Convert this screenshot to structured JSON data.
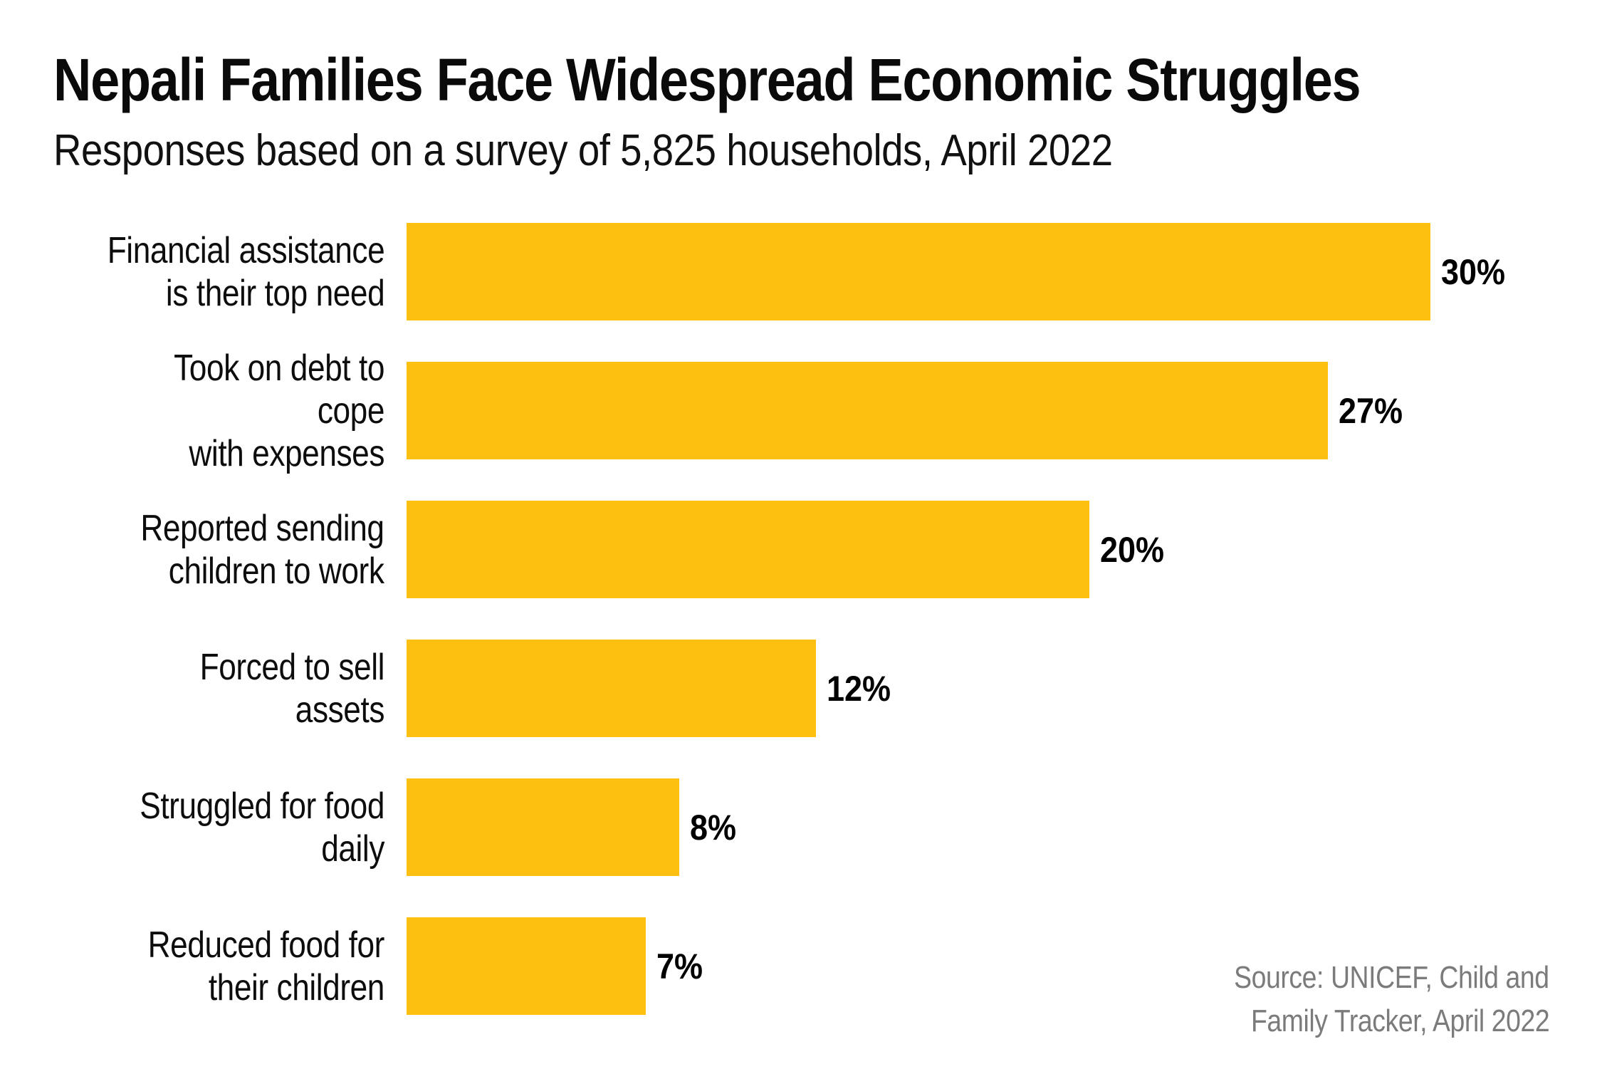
{
  "header": {
    "title": "Nepali Families Face Widespread Economic Struggles",
    "subtitle": "Responses based on a survey of 5,825 households, April 2022"
  },
  "chart_data": {
    "type": "bar",
    "orientation": "horizontal",
    "title": "Nepali Families Face Widespread Economic Struggles",
    "subtitle": "Responses based on a survey of 5,825 households, April 2022",
    "categories": [
      "Financial assistance is their top need",
      "Took on debt to cope with expenses",
      "Reported sending children to work",
      "Forced to sell assets",
      "Struggled for food daily",
      "Reduced food for their children"
    ],
    "category_lines": [
      [
        "Financial assistance",
        "is their top need"
      ],
      [
        "Took on debt to cope",
        "with expenses"
      ],
      [
        "Reported sending",
        "children to work"
      ],
      [
        "Forced to sell assets"
      ],
      [
        "Struggled for food daily"
      ],
      [
        "Reduced food for",
        "their children"
      ]
    ],
    "values": [
      30,
      27,
      20,
      12,
      8,
      7
    ],
    "value_labels": [
      "30%",
      "27%",
      "20%",
      "12%",
      "8%",
      "7%"
    ],
    "unit": "%",
    "xlim": [
      0,
      30
    ],
    "grid": false,
    "axis_lines": false,
    "value_label_position": "end-of-bar",
    "bar_color": "#FDC010",
    "label_color": "#0d0d0d",
    "value_color": "#000000"
  },
  "source": {
    "line1": "Source: UNICEF, Child and",
    "line2": "Family Tracker, April 2022",
    "color": "#7b7b7b"
  }
}
